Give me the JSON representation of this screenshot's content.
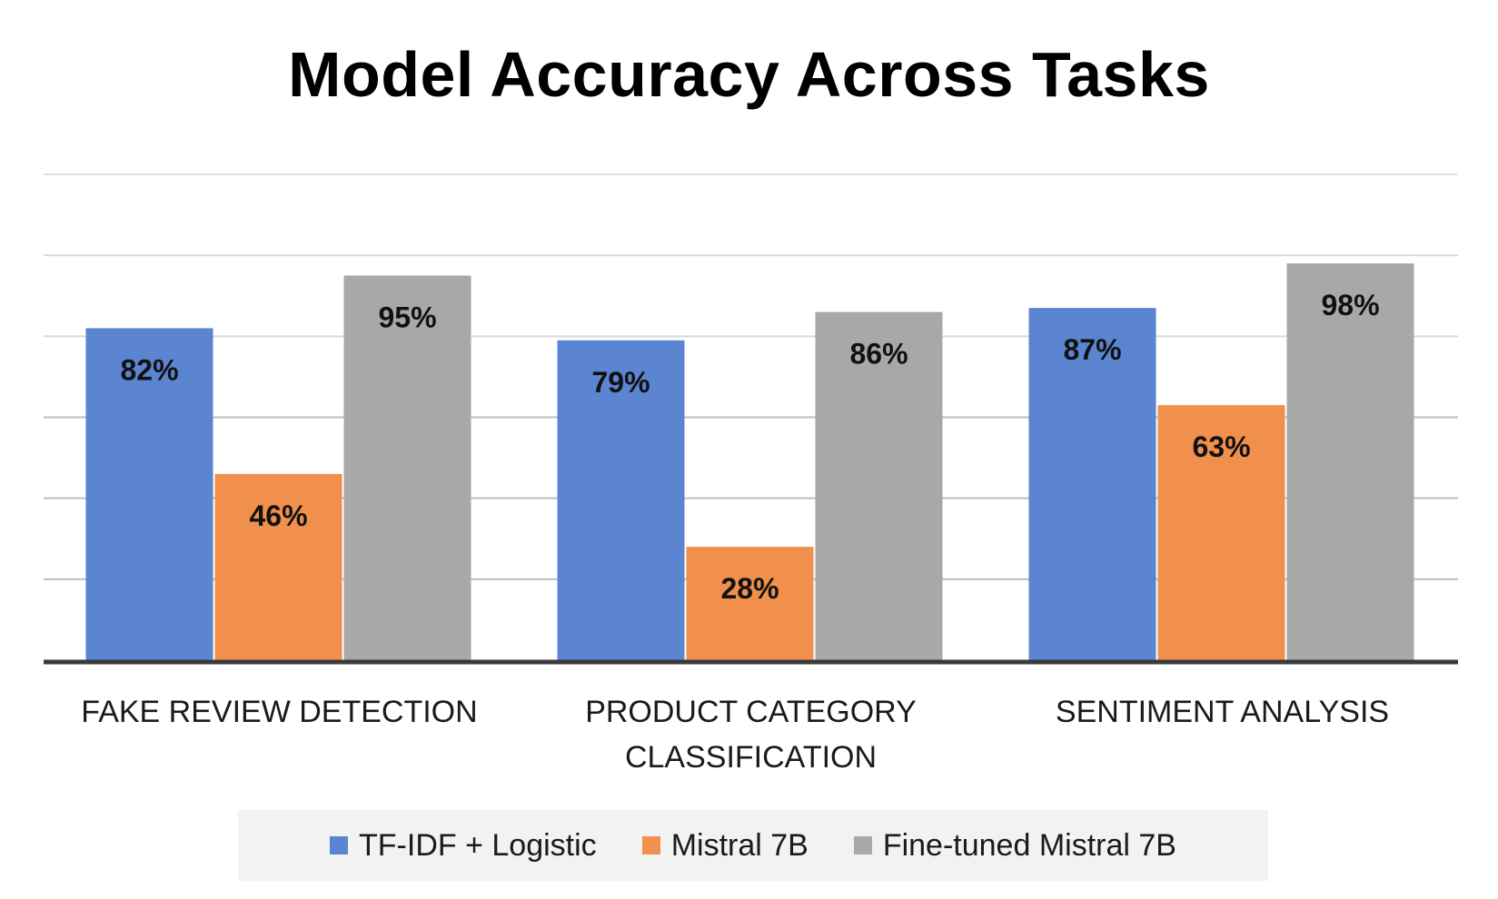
{
  "chart_data": {
    "type": "bar",
    "title": "Model Accuracy Across Tasks",
    "categories": [
      [
        "FAKE REVIEW DETECTION"
      ],
      [
        "PRODUCT CATEGORY",
        "CLASSIFICATION"
      ],
      [
        "SENTIMENT ANALYSIS"
      ]
    ],
    "series": [
      {
        "name": "TF-IDF + Logistic",
        "color": "#5b84d1",
        "values": [
          82,
          79,
          87
        ],
        "labels": [
          "82%",
          "79%",
          "87%"
        ]
      },
      {
        "name": "Mistral 7B",
        "color": "#f0904c",
        "values": [
          46,
          28,
          63
        ],
        "labels": [
          "46%",
          "28%",
          "63%"
        ]
      },
      {
        "name": "Fine-tuned Mistral 7B",
        "color": "#a8a8a8",
        "values": [
          95,
          86,
          98
        ],
        "labels": [
          "95%",
          "86%",
          "98%"
        ]
      }
    ],
    "ylim": [
      0,
      120
    ],
    "y_gridlines": [
      20,
      40,
      60,
      80,
      100,
      120
    ],
    "grid": true,
    "y_tick_labels_shown": false,
    "legend_position": "bottom"
  }
}
